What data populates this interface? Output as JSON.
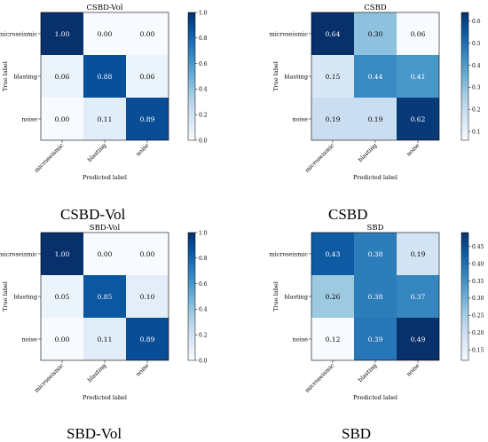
{
  "chart_data": [
    {
      "type": "heatmap",
      "title": "CSBD-Vol",
      "caption": "CSBD-Vol",
      "xlabel": "Predicted label",
      "ylabel": "True label",
      "x_categories": [
        "microseismic",
        "blasting",
        "noise"
      ],
      "y_categories": [
        "microseismic",
        "blasting",
        "noise"
      ],
      "values": [
        [
          1.0,
          0.0,
          0.0
        ],
        [
          0.06,
          0.88,
          0.06
        ],
        [
          0.0,
          0.11,
          0.89
        ]
      ],
      "value_labels": [
        [
          "1.00",
          "0.00",
          "0.00"
        ],
        [
          "0.06",
          "0.88",
          "0.06"
        ],
        [
          "0.00",
          "0.11",
          "0.89"
        ]
      ],
      "color_range": [
        0,
        1
      ],
      "colorbar_ticks": [
        "0.0",
        "0.2",
        "0.4",
        "0.6",
        "0.8",
        "1.0"
      ],
      "colormap": "Blues"
    },
    {
      "type": "heatmap",
      "title": "CSBD",
      "caption": "CSBD",
      "xlabel": "Predicted label",
      "ylabel": "True label",
      "x_categories": [
        "microseismic",
        "blasting",
        "noise"
      ],
      "y_categories": [
        "microseismic",
        "blasting",
        "noise"
      ],
      "values": [
        [
          0.64,
          0.3,
          0.06
        ],
        [
          0.15,
          0.44,
          0.41
        ],
        [
          0.19,
          0.19,
          0.62
        ]
      ],
      "value_labels": [
        [
          "0.64",
          "0.30",
          "0.06"
        ],
        [
          "0.15",
          "0.44",
          "0.41"
        ],
        [
          "0.19",
          "0.19",
          "0.62"
        ]
      ],
      "color_range": [
        0.06,
        0.64
      ],
      "colorbar_ticks": [
        "0.1",
        "0.2",
        "0.3",
        "0.4",
        "0.5",
        "0.6"
      ],
      "colormap": "Blues"
    },
    {
      "type": "heatmap",
      "title": "SBD-Vol",
      "caption": "SBD-Vol",
      "xlabel": "Predicted label",
      "ylabel": "True label",
      "x_categories": [
        "microseismic",
        "blasting",
        "noise"
      ],
      "y_categories": [
        "microseismic",
        "blasting",
        "noise"
      ],
      "values": [
        [
          1.0,
          0.0,
          0.0
        ],
        [
          0.05,
          0.85,
          0.1
        ],
        [
          0.0,
          0.11,
          0.89
        ]
      ],
      "value_labels": [
        [
          "1.00",
          "0.00",
          "0.00"
        ],
        [
          "0.05",
          "0.85",
          "0.10"
        ],
        [
          "0.00",
          "0.11",
          "0.89"
        ]
      ],
      "color_range": [
        0,
        1
      ],
      "colorbar_ticks": [
        "0.0",
        "0.2",
        "0.4",
        "0.6",
        "0.8",
        "1.0"
      ],
      "colormap": "Blues"
    },
    {
      "type": "heatmap",
      "title": "SBD",
      "caption": "SBD",
      "xlabel": "Predicted label",
      "ylabel": "True label",
      "x_categories": [
        "microseismic",
        "blasting",
        "noise"
      ],
      "y_categories": [
        "microseismic",
        "blasting",
        "noise"
      ],
      "values": [
        [
          0.43,
          0.38,
          0.19
        ],
        [
          0.26,
          0.38,
          0.37
        ],
        [
          0.12,
          0.39,
          0.49
        ]
      ],
      "value_labels": [
        [
          "0.43",
          "0.38",
          "0.19"
        ],
        [
          "0.26",
          "0.38",
          "0.37"
        ],
        [
          "0.12",
          "0.39",
          "0.49"
        ]
      ],
      "color_range": [
        0.12,
        0.49
      ],
      "colorbar_ticks": [
        "0.15",
        "0.20",
        "0.25",
        "0.30",
        "0.35",
        "0.40",
        "0.45"
      ],
      "colormap": "Blues"
    }
  ]
}
